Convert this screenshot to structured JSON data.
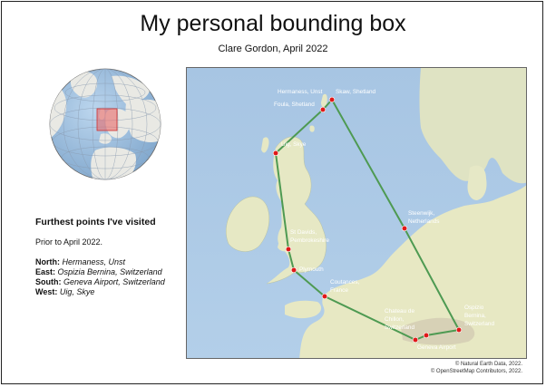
{
  "page": {
    "title": "My personal bounding box",
    "subtitle": "Clare Gordon, April 2022"
  },
  "info": {
    "heading": "Furthest points I've visited",
    "prior": "Prior to April 2022.",
    "extremes": [
      {
        "dir": "North:",
        "place": "Hermaness, Unst"
      },
      {
        "dir": "East:",
        "place": "Ospizia Bernina, Switzerland"
      },
      {
        "dir": "South:",
        "place": "Geneva Airport, Switzerland"
      },
      {
        "dir": "West:",
        "place": "Uig, Skye"
      }
    ]
  },
  "map": {
    "colors": {
      "sea": "#a9c8e6",
      "land": "#e8e9c9",
      "route": "#4e9a52",
      "point": "#e01818"
    },
    "labels": {
      "hermaness": "Hermaness, Unst",
      "skaw": "Skaw, Shetland",
      "foula": "Foula, Shetland",
      "uig": "Uig, Skye",
      "steenwijk_1": "Steenwijk,",
      "steenwijk_2": "Netherlands",
      "stdavids_1": "St Davids,",
      "stdavids_2": "Pembrokeshire",
      "plymouth": "Plymouth",
      "coutances_1": "Coutances,",
      "coutances_2": "France",
      "chillon_1": "Chateau de",
      "chillon_2": "Chillon,",
      "chillon_3": "Switzerland",
      "ospizio_1": "Ospizio",
      "ospizio_2": "Bernina,",
      "ospizio_3": "Switzerland",
      "geneva": "Geneva Airport"
    },
    "places": [
      "Hermaness, Unst",
      "Skaw, Shetland",
      "Foula, Shetland",
      "Uig, Skye",
      "Steenwijk, Netherlands",
      "St Davids, Pembrokeshire",
      "Plymouth",
      "Coutances, France",
      "Chateau de Chillon, Switzerland",
      "Ospizio Bernina, Switzerland",
      "Geneva Airport"
    ]
  },
  "attribution": {
    "line1": "© Natural Earth Data, 2022.",
    "line2": "© OpenStreetMap Contributors, 2022."
  }
}
